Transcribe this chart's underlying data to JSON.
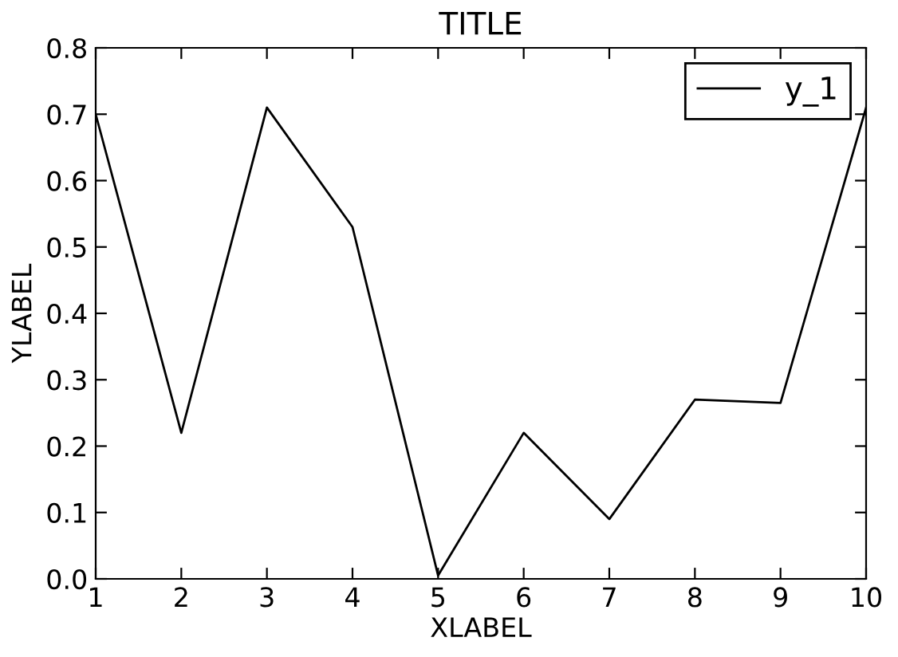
{
  "chart_data": {
    "type": "line",
    "title": "TITLE",
    "xlabel": "XLABEL",
    "ylabel": "YLABEL",
    "x": [
      1,
      2,
      3,
      4,
      5,
      6,
      7,
      8,
      9,
      10
    ],
    "series": [
      {
        "name": "y_1",
        "color": "#000000",
        "values": [
          0.7,
          0.22,
          0.71,
          0.53,
          0.005,
          0.22,
          0.09,
          0.27,
          0.265,
          0.71
        ]
      }
    ],
    "xlim": [
      1,
      10
    ],
    "xticks": [
      1,
      2,
      3,
      4,
      5,
      6,
      7,
      8,
      9,
      10
    ],
    "ylim": [
      0.0,
      0.8
    ],
    "yticks": [
      {
        "value": 0.0,
        "label": "0.0"
      },
      {
        "value": 0.1,
        "label": "0.1"
      },
      {
        "value": 0.2,
        "label": "0.2"
      },
      {
        "value": 0.3,
        "label": "0.3"
      },
      {
        "value": 0.4,
        "label": "0.4"
      },
      {
        "value": 0.5,
        "label": "0.5"
      },
      {
        "value": 0.6,
        "label": "0.6"
      },
      {
        "value": 0.7,
        "label": "0.7"
      },
      {
        "value": 0.8,
        "label": "0.8"
      }
    ],
    "grid": false,
    "legend": "top right",
    "marker": "none",
    "line_style": "solid"
  }
}
